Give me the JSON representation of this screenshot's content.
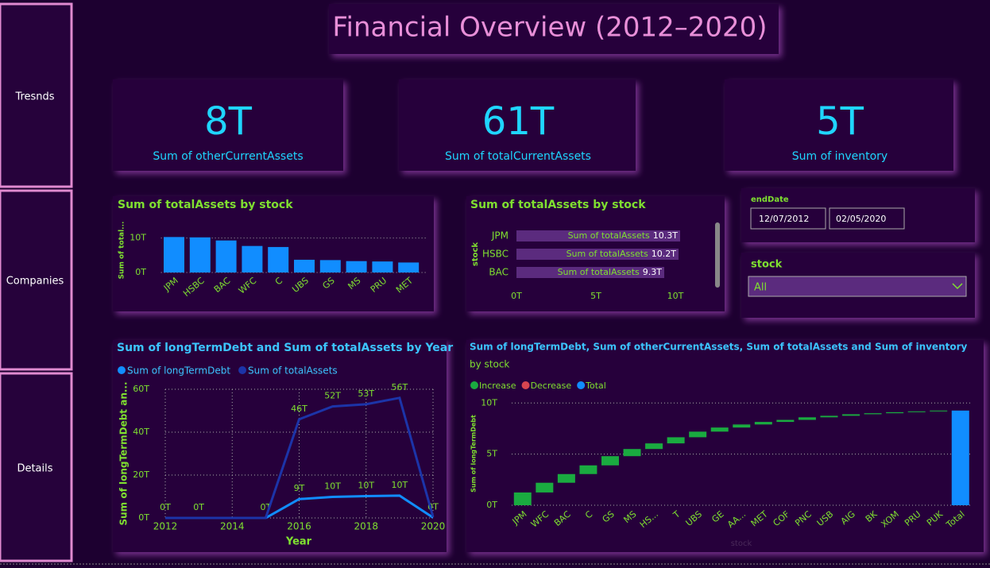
{
  "nav": [
    "Tresnds",
    "Companies",
    "Details"
  ],
  "title": "Financial Overview (2012–2020)",
  "cards": [
    {
      "value": "8T",
      "label": "Sum of otherCurrentAssets"
    },
    {
      "value": "61T",
      "label": "Sum of totalCurrentAssets"
    },
    {
      "value": "5T",
      "label": "Sum of inventory"
    }
  ],
  "date_slicer": {
    "title": "endDate",
    "start": "12/07/2012",
    "end": "02/05/2020"
  },
  "stock_slicer": {
    "title": "stock",
    "selected": "All"
  },
  "chart_data": [
    {
      "type": "bar",
      "title": "Sum of totalAssets by stock",
      "ylabel": "Sum of total...",
      "categories": [
        "JPM",
        "HSBC",
        "BAC",
        "WFC",
        "C",
        "UBS",
        "GS",
        "MS",
        "PRU",
        "MET"
      ],
      "values": [
        10.3,
        10.2,
        9.3,
        7.7,
        7.4,
        3.7,
        3.6,
        3.3,
        3.2,
        2.9
      ],
      "color": "#118dff",
      "ylim": [
        0,
        12
      ],
      "yticks": [
        {
          "value": 0,
          "label": "0T"
        },
        {
          "value": 10,
          "label": "10T"
        }
      ],
      "grid": true
    },
    {
      "type": "barh",
      "title": "Sum of totalAssets by stock",
      "ylabel": "stock",
      "categories": [
        "JPM",
        "HSBC",
        "BAC"
      ],
      "series": [
        {
          "name": "Sum of totalAssets",
          "color": "#5b2b7e",
          "values": [
            10.3,
            10.2,
            9.3
          ],
          "value_labels": [
            "10.3T",
            "10.2T",
            "9.3T"
          ]
        }
      ],
      "xlim": [
        0,
        12.5
      ],
      "xticks": [
        {
          "value": 0,
          "label": "0T"
        },
        {
          "value": 5,
          "label": "5T"
        },
        {
          "value": 10,
          "label": "10T"
        }
      ]
    },
    {
      "type": "line",
      "title": "Sum of longTermDebt and Sum of totalAssets by Year",
      "xlabel": "Year",
      "ylabel": "Sum of longTermDebt an...",
      "x": [
        2012,
        2013,
        2015,
        2016,
        2017,
        2018,
        2019,
        2020
      ],
      "series": [
        {
          "name": "Sum of longTermDebt",
          "color": "#118dff",
          "values": [
            0,
            0,
            0,
            8.8,
            9.8,
            10.2,
            10.4,
            0.2
          ],
          "value_labels": [
            "0T",
            "0T",
            "0T",
            "9T",
            "10T",
            "10T",
            "10T",
            "0T"
          ]
        },
        {
          "name": "Sum of totalAssets",
          "color": "#1c34a8",
          "values": [
            0,
            0,
            0,
            46,
            52,
            53,
            56,
            0.5
          ],
          "value_labels": [
            null,
            null,
            null,
            "46T",
            "52T",
            "53T",
            "56T",
            null
          ]
        }
      ],
      "xlim": [
        2012,
        2020
      ],
      "xticks": [
        2012,
        2014,
        2016,
        2018,
        2020
      ],
      "ylim": [
        0,
        60
      ],
      "yticks": [
        {
          "value": 0,
          "label": "0T"
        },
        {
          "value": 20,
          "label": "20T"
        },
        {
          "value": 40,
          "label": "40T"
        },
        {
          "value": 60,
          "label": "60T"
        }
      ],
      "grid": true,
      "legend": "top-left"
    },
    {
      "type": "waterfall",
      "title": "Sum of longTermDebt, Sum of otherCurrentAssets, Sum of totalAssets and Sum of inventory",
      "subtitle": "by stock",
      "xlabel": "stock",
      "ylabel": "Sum of longTermDebt",
      "categories": [
        "JPM",
        "WFC",
        "BAC",
        "C",
        "GS",
        "MS",
        "HS...",
        "T",
        "UBS",
        "GE",
        "AA...",
        "MET",
        "COF",
        "PNC",
        "USB",
        "AIG",
        "BK",
        "XOM",
        "PRU",
        "PUK"
      ],
      "values": [
        1.25,
        0.95,
        0.85,
        0.85,
        0.9,
        0.7,
        0.55,
        0.6,
        0.55,
        0.4,
        0.3,
        0.25,
        0.2,
        0.25,
        0.15,
        0.15,
        0.1,
        0.1,
        0.08,
        0.08
      ],
      "total_label": "Total",
      "total": 9.26,
      "legend_items": [
        {
          "name": "Increase",
          "color": "#1aab40"
        },
        {
          "name": "Decrease",
          "color": "#d64550"
        },
        {
          "name": "Total",
          "color": "#118dff"
        }
      ],
      "ylim": [
        0,
        10.8
      ],
      "yticks": [
        {
          "value": 0,
          "label": "0T"
        },
        {
          "value": 5,
          "label": "5T"
        },
        {
          "value": 10,
          "label": "10T"
        }
      ],
      "grid": true
    }
  ]
}
